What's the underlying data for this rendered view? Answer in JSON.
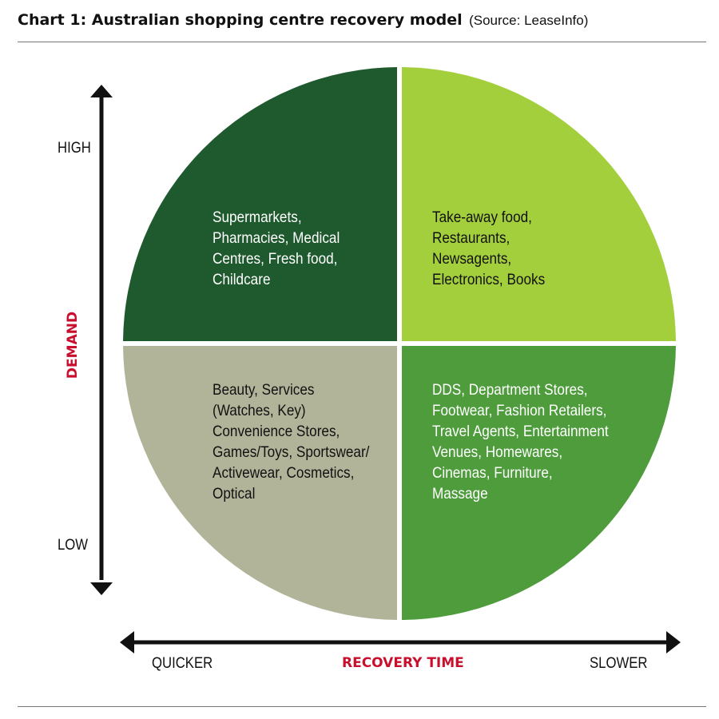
{
  "header": {
    "title": "Chart 1: Australian shopping centre recovery model",
    "source": "(Source: LeaseInfo)"
  },
  "axes": {
    "y_label": "DEMAND",
    "y_high": "HIGH",
    "y_low": "LOW",
    "x_label": "RECOVERY TIME",
    "x_left": "QUICKER",
    "x_right": "SLOWER"
  },
  "quadrants": {
    "top_left": {
      "text": "Supermarkets,\nPharmacies, Medical\nCentres, Fresh food,\nChildcare",
      "color": "#1f5a2e",
      "text_color": "#ffffff"
    },
    "top_right": {
      "text": "Take-away food,\nRestaurants,\nNewsagents,\nElectronics, Books",
      "color": "#a4cf3c",
      "text_color": "#111111"
    },
    "bottom_left": {
      "text": "Beauty, Services\n(Watches, Key)\nConvenience Stores,\nGames/Toys, Sportswear/\nActivewear, Cosmetics,\nOptical",
      "color": "#b2b49a",
      "text_color": "#111111"
    },
    "bottom_right": {
      "text": "DDS, Department Stores,\nFootwear, Fashion Retailers,\nTravel Agents, Entertainment\nVenues, Homewares,\nCinemas, Furniture,\nMassage",
      "color": "#4e9c3c",
      "text_color": "#ffffff"
    }
  }
}
